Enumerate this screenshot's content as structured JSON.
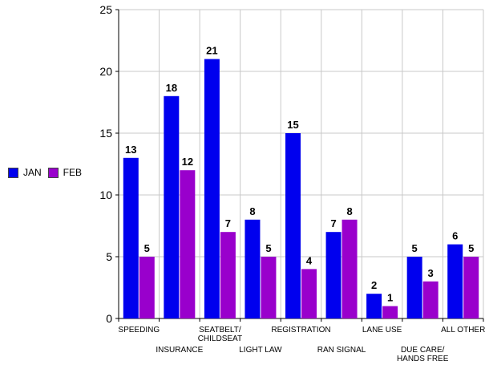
{
  "chart_data": {
    "type": "bar",
    "categories": [
      "SPEEDING",
      "INSURANCE",
      "SEATBELT/ CHILDSEAT",
      "LIGHT LAW",
      "REGISTRATION",
      "RAN SIGNAL",
      "LANE USE",
      "DUE CARE/ HANDS FREE",
      "ALL OTHER"
    ],
    "category_lines": [
      [
        "SPEEDING"
      ],
      [
        "INSURANCE"
      ],
      [
        "SEATBELT/",
        "CHILDSEAT"
      ],
      [
        "LIGHT LAW"
      ],
      [
        "REGISTRATION"
      ],
      [
        "RAN SIGNAL"
      ],
      [
        "LANE USE"
      ],
      [
        "DUE CARE/",
        "HANDS FREE"
      ],
      [
        "ALL OTHER"
      ]
    ],
    "label_row": [
      "upper",
      "lower",
      "upper",
      "lower",
      "upper",
      "lower",
      "upper",
      "lower",
      "upper"
    ],
    "series": [
      {
        "name": "JAN",
        "color": "#0000EE",
        "values": [
          13,
          18,
          21,
          8,
          15,
          7,
          2,
          5,
          6
        ]
      },
      {
        "name": "FEB",
        "color": "#9900CC",
        "values": [
          5,
          12,
          7,
          5,
          4,
          8,
          1,
          3,
          5
        ]
      }
    ],
    "ylim": [
      0,
      25
    ],
    "yticks": [
      0,
      5,
      10,
      15,
      20,
      25
    ],
    "grid": true,
    "legend_position": "left",
    "title": "",
    "xlabel": "",
    "ylabel": ""
  }
}
